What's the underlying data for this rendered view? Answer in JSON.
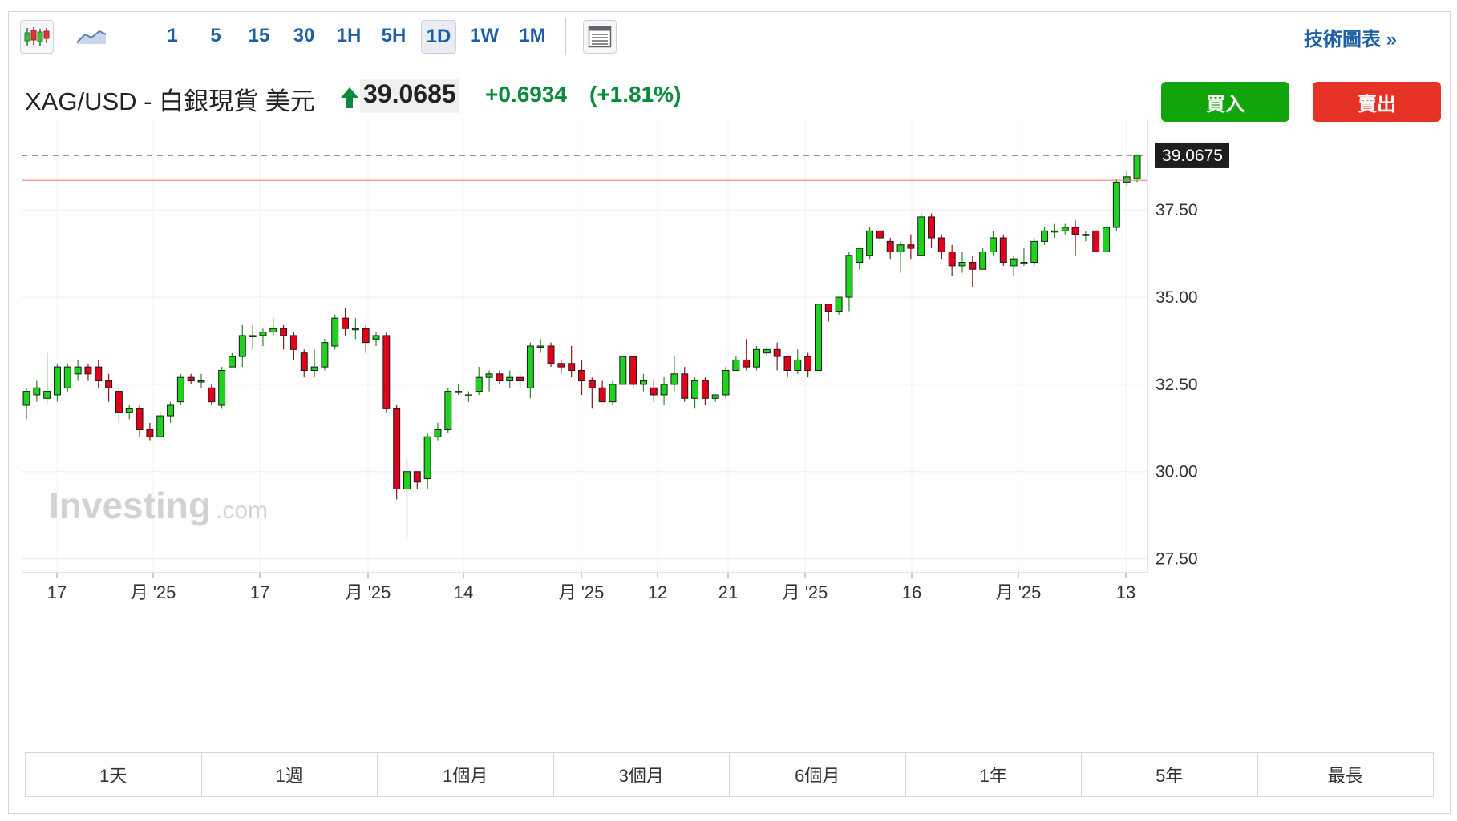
{
  "toolbar": {
    "chart_type_icons": [
      "candlestick-icon",
      "area-chart-icon"
    ],
    "intervals": [
      "1",
      "5",
      "15",
      "30",
      "1H",
      "5H",
      "1D",
      "1W",
      "1M"
    ],
    "active_interval": "1D",
    "layout_icon": "layout-icon",
    "tech_link_label": "技術圖表 »"
  },
  "header": {
    "instrument": "XAG/USD - 白銀現貨 美元",
    "price": "39.0685",
    "change": "+0.6934",
    "change_pct": "(+1.81%)",
    "direction_icon": "up-arrow-icon",
    "buy_label": "買入",
    "sell_label": "賣出"
  },
  "colors": {
    "up": "#1ed31e",
    "down": "#e3001b",
    "accent": "#1f5fa6",
    "buy": "#12a50b",
    "sell": "#e53225"
  },
  "watermark": {
    "brand": "Investing",
    "suffix": ".com"
  },
  "range_tabs": [
    "1天",
    "1週",
    "1個月",
    "3個月",
    "6個月",
    "1年",
    "5年",
    "最長"
  ],
  "chart_data": {
    "type": "candlestick",
    "ylim": [
      27.1,
      40.1
    ],
    "yticks": [
      "27.50",
      "30.00",
      "32.50",
      "35.00",
      "37.50"
    ],
    "last_price_label": "39.0675",
    "last_price": 39.0675,
    "reference_line": 38.35,
    "xtick_labels": [
      "17",
      "月 '25",
      "17",
      "月 '25",
      "14",
      "月 '25",
      "12",
      "21",
      "月 '25",
      "16",
      "月 '25",
      "13"
    ],
    "candles": [
      [
        31.9,
        32.3,
        31.5,
        32.4
      ],
      [
        32.2,
        32.4,
        32.0,
        32.6
      ],
      [
        32.1,
        32.3,
        31.95,
        33.4
      ],
      [
        32.2,
        33.0,
        32.0,
        33.1
      ],
      [
        32.4,
        33.0,
        32.3,
        33.1
      ],
      [
        32.8,
        33.0,
        32.6,
        33.2
      ],
      [
        33.0,
        32.8,
        32.6,
        33.1
      ],
      [
        33.0,
        32.6,
        32.4,
        33.2
      ],
      [
        32.6,
        32.4,
        32.0,
        32.8
      ],
      [
        32.3,
        31.7,
        31.4,
        32.4
      ],
      [
        31.7,
        31.8,
        31.5,
        31.9
      ],
      [
        31.8,
        31.2,
        31.0,
        31.9
      ],
      [
        31.2,
        31.0,
        30.9,
        31.4
      ],
      [
        31.0,
        31.6,
        31.0,
        31.7
      ],
      [
        31.6,
        31.9,
        31.4,
        32.0
      ],
      [
        32.0,
        32.7,
        31.9,
        32.8
      ],
      [
        32.7,
        32.6,
        32.5,
        32.8
      ],
      [
        32.6,
        32.6,
        32.4,
        32.8
      ],
      [
        32.4,
        32.0,
        31.9,
        32.5
      ],
      [
        31.9,
        32.9,
        31.8,
        33.0
      ],
      [
        33.0,
        33.3,
        33.0,
        33.4
      ],
      [
        33.3,
        33.9,
        33.0,
        34.2
      ],
      [
        33.9,
        33.9,
        33.5,
        34.2
      ],
      [
        33.9,
        34.0,
        33.6,
        34.1
      ],
      [
        34.0,
        34.1,
        33.9,
        34.4
      ],
      [
        34.1,
        33.9,
        33.5,
        34.2
      ],
      [
        33.9,
        33.5,
        33.2,
        34.0
      ],
      [
        33.4,
        32.9,
        32.7,
        33.5
      ],
      [
        32.9,
        33.0,
        32.7,
        33.5
      ],
      [
        33.0,
        33.7,
        32.9,
        33.8
      ],
      [
        33.6,
        34.4,
        33.5,
        34.5
      ],
      [
        34.4,
        34.1,
        33.9,
        34.7
      ],
      [
        34.1,
        34.1,
        33.8,
        34.4
      ],
      [
        34.1,
        33.7,
        33.4,
        34.2
      ],
      [
        33.8,
        33.9,
        33.6,
        34.0
      ],
      [
        33.9,
        31.8,
        31.7,
        34.0
      ],
      [
        31.8,
        29.5,
        29.2,
        31.9
      ],
      [
        29.5,
        30.0,
        28.1,
        30.4
      ],
      [
        30.0,
        29.7,
        29.5,
        30.0
      ],
      [
        29.8,
        31.0,
        29.5,
        31.1
      ],
      [
        31.0,
        31.2,
        30.9,
        31.4
      ],
      [
        31.2,
        32.3,
        31.1,
        32.4
      ],
      [
        32.3,
        32.3,
        32.2,
        32.5
      ],
      [
        32.2,
        32.2,
        32.0,
        32.3
      ],
      [
        32.3,
        32.7,
        32.2,
        33.0
      ],
      [
        32.7,
        32.8,
        32.3,
        32.9
      ],
      [
        32.8,
        32.6,
        32.5,
        32.9
      ],
      [
        32.6,
        32.7,
        32.4,
        32.9
      ],
      [
        32.7,
        32.6,
        32.4,
        32.8
      ],
      [
        32.4,
        33.6,
        32.1,
        33.7
      ],
      [
        33.6,
        33.6,
        33.4,
        33.8
      ],
      [
        33.6,
        33.1,
        33.0,
        33.7
      ],
      [
        33.1,
        33.0,
        32.8,
        33.2
      ],
      [
        33.1,
        32.9,
        32.7,
        33.6
      ],
      [
        32.9,
        32.6,
        32.2,
        33.2
      ],
      [
        32.6,
        32.4,
        31.8,
        32.7
      ],
      [
        32.4,
        32.0,
        32.0,
        32.6
      ],
      [
        32.0,
        32.5,
        31.9,
        32.6
      ],
      [
        32.5,
        33.3,
        32.5,
        33.3
      ],
      [
        33.3,
        32.5,
        32.4,
        33.3
      ],
      [
        32.5,
        32.6,
        32.3,
        32.8
      ],
      [
        32.4,
        32.2,
        32.0,
        32.6
      ],
      [
        32.2,
        32.5,
        31.9,
        32.7
      ],
      [
        32.5,
        32.8,
        32.3,
        33.3
      ],
      [
        32.8,
        32.1,
        32.0,
        33.0
      ],
      [
        32.1,
        32.6,
        31.8,
        32.7
      ],
      [
        32.6,
        32.1,
        31.9,
        32.7
      ],
      [
        32.1,
        32.2,
        32.0,
        32.2
      ],
      [
        32.2,
        32.9,
        32.1,
        33.0
      ],
      [
        32.9,
        33.2,
        32.9,
        33.3
      ],
      [
        33.2,
        33.0,
        32.9,
        33.8
      ],
      [
        33.0,
        33.5,
        32.9,
        33.6
      ],
      [
        33.4,
        33.5,
        33.3,
        33.6
      ],
      [
        33.5,
        33.3,
        32.9,
        33.7
      ],
      [
        33.3,
        32.9,
        32.7,
        33.3
      ],
      [
        32.9,
        33.2,
        32.8,
        33.5
      ],
      [
        33.3,
        32.9,
        32.7,
        33.4
      ],
      [
        32.9,
        34.8,
        32.9,
        34.8
      ],
      [
        34.8,
        34.6,
        34.3,
        34.8
      ],
      [
        34.6,
        35.0,
        34.5,
        35.0
      ],
      [
        35.0,
        36.2,
        34.6,
        36.3
      ],
      [
        36.0,
        36.4,
        35.8,
        36.4
      ],
      [
        36.2,
        36.9,
        36.1,
        37.0
      ],
      [
        36.9,
        36.7,
        36.6,
        36.9
      ],
      [
        36.6,
        36.3,
        36.1,
        36.7
      ],
      [
        36.3,
        36.5,
        35.7,
        36.6
      ],
      [
        36.5,
        36.4,
        36.1,
        36.8
      ],
      [
        36.2,
        37.3,
        36.2,
        37.4
      ],
      [
        37.3,
        36.7,
        36.4,
        37.4
      ],
      [
        36.7,
        36.3,
        36.1,
        36.8
      ],
      [
        36.3,
        35.9,
        35.6,
        36.5
      ],
      [
        35.9,
        36.0,
        35.7,
        36.3
      ],
      [
        36.0,
        35.8,
        35.3,
        36.2
      ],
      [
        35.8,
        36.3,
        35.8,
        36.4
      ],
      [
        36.3,
        36.7,
        36.2,
        36.9
      ],
      [
        36.7,
        36.0,
        35.9,
        36.8
      ],
      [
        35.9,
        36.1,
        35.6,
        36.2
      ],
      [
        36.0,
        36.0,
        35.9,
        36.4
      ],
      [
        36.0,
        36.6,
        35.9,
        36.7
      ],
      [
        36.6,
        36.9,
        36.5,
        37.0
      ],
      [
        36.9,
        36.9,
        36.7,
        37.1
      ],
      [
        36.9,
        37.0,
        36.8,
        37.1
      ],
      [
        37.0,
        36.8,
        36.2,
        37.2
      ],
      [
        36.8,
        36.8,
        36.6,
        36.9
      ],
      [
        36.9,
        36.3,
        36.3,
        36.9
      ],
      [
        36.3,
        37.0,
        36.3,
        37.0
      ],
      [
        37.0,
        38.3,
        36.9,
        38.4
      ],
      [
        38.3,
        38.45,
        38.2,
        38.6
      ],
      [
        38.4,
        39.07,
        38.3,
        39.1
      ]
    ]
  }
}
